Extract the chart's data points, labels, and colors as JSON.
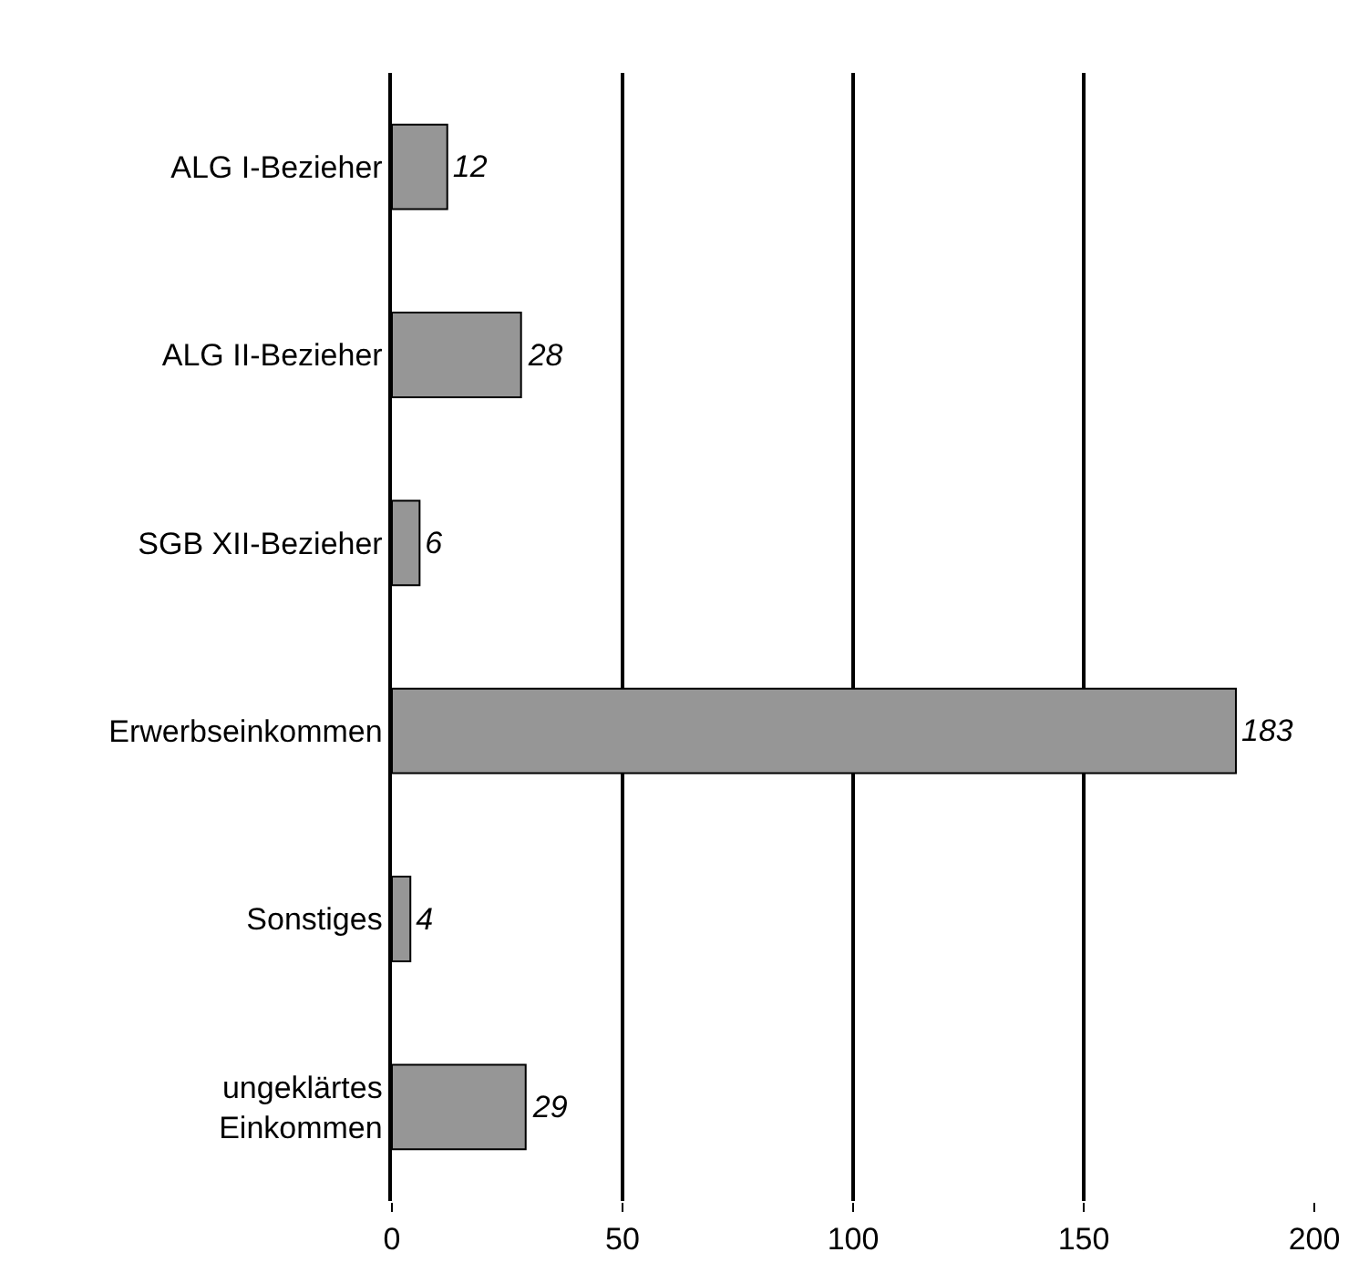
{
  "chart_data": {
    "type": "bar",
    "orientation": "horizontal",
    "categories": [
      "ALG I-Bezieher",
      "ALG II-Bezieher",
      "SGB XII-Bezieher",
      "Erwerbseinkommen",
      "Sonstiges",
      "ungeklärtes\nEinkommen"
    ],
    "values": [
      12,
      28,
      6,
      183,
      4,
      29
    ],
    "color": "#969696",
    "xlim": [
      0,
      200
    ],
    "xticks": [
      0,
      50,
      100,
      150,
      200
    ],
    "grid": "x",
    "data_labels": true,
    "legend": false
  }
}
